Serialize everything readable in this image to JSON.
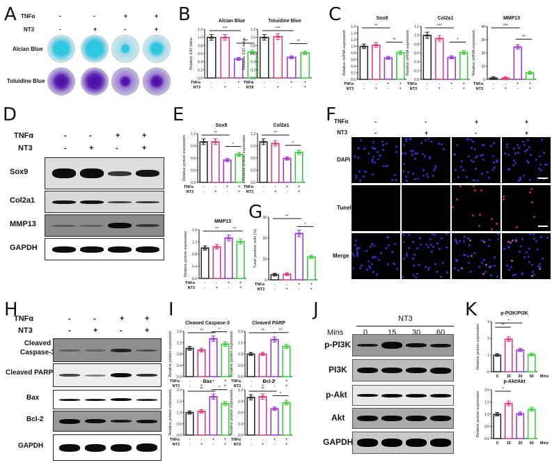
{
  "panels": {
    "A": {
      "label": "A",
      "rows": [
        "TNFα",
        "NT3"
      ],
      "treatments": {
        "TNFa": [
          "-",
          "-",
          "+",
          "+"
        ],
        "NT3": [
          "-",
          "+",
          "-",
          "+"
        ]
      },
      "stains": [
        "Alcian Blue",
        "Toluidine Blue"
      ]
    },
    "B": {
      "label": "B"
    },
    "C": {
      "label": "C"
    },
    "D": {
      "label": "D",
      "rows": [
        "TNFα",
        "NT3"
      ],
      "treatments": {
        "TNFa": [
          "-",
          "-",
          "+",
          "+"
        ],
        "NT3": [
          "-",
          "+",
          "-",
          "+"
        ]
      },
      "blots": [
        "Sox9",
        "Col2a1",
        "MMP13",
        "GAPDH"
      ]
    },
    "E": {
      "label": "E"
    },
    "F": {
      "label": "F",
      "rows": [
        "TNFα",
        "NT3"
      ],
      "treatments": {
        "TNFa": [
          "-",
          "-",
          "+",
          "+"
        ],
        "NT3": [
          "-",
          "+",
          "-",
          "+"
        ]
      },
      "channels": [
        "DAPI",
        "Tunel",
        "Merge"
      ]
    },
    "G": {
      "label": "G"
    },
    "H": {
      "label": "H",
      "rows": [
        "TNFα",
        "NT3"
      ],
      "treatments": {
        "TNFa": [
          "-",
          "-",
          "+",
          "+"
        ],
        "NT3": [
          "-",
          "+",
          "-",
          "+"
        ]
      },
      "blots": [
        "Cleaved Caspase-3",
        "Cleaved PARP",
        "Bax",
        "Bcl-2",
        "GAPDH"
      ]
    },
    "I": {
      "label": "I"
    },
    "J": {
      "label": "J",
      "group": "NT3",
      "time_label": "Mins",
      "times": [
        "0",
        "15",
        "30",
        "60"
      ],
      "blots": [
        "p-PI3K",
        "PI3K",
        "p-Akt",
        "Akt",
        "GAPDH"
      ]
    },
    "K": {
      "label": "K"
    }
  },
  "axis_common": {
    "tnfa_label": "TNFα",
    "nt3_label": "NT3",
    "mins_label": "Mins"
  },
  "colors": {
    "ctrl": "#222222",
    "nt3": "#e0307a",
    "tnfa": "#9b30d9",
    "tnfa_nt3": "#33cc33"
  },
  "chart_data": [
    {
      "panel": "B",
      "type": "bar",
      "title": "Alcian Blue",
      "ylabel": "Relative IOD Value",
      "categories": [
        "Ctrl",
        "NT3",
        "TNFα",
        "TNFα+NT3"
      ],
      "values": [
        1.0,
        1.0,
        0.47,
        0.64
      ],
      "ylim": [
        0,
        1.2
      ],
      "yticks": [
        "0.0",
        "0.2",
        "0.4",
        "0.6",
        "0.8",
        "1.0",
        "1.2"
      ],
      "sig": [
        {
          "from": 0,
          "to": 2,
          "text": "***"
        },
        {
          "from": 2,
          "to": 3,
          "text": "***"
        }
      ]
    },
    {
      "panel": "B",
      "type": "bar",
      "title": "Toluidine Blue",
      "ylabel": "Relative IOD Value",
      "categories": [
        "Ctrl",
        "NT3",
        "TNFα",
        "TNFα+NT3"
      ],
      "values": [
        1.0,
        1.02,
        0.51,
        0.62
      ],
      "ylim": [
        0,
        1.2
      ],
      "yticks": [
        "0.0",
        "0.2",
        "0.4",
        "0.6",
        "0.8",
        "1.0",
        "1.2"
      ],
      "sig": [
        {
          "from": 0,
          "to": 2,
          "text": "***"
        },
        {
          "from": 2,
          "to": 3,
          "text": "**"
        }
      ]
    },
    {
      "panel": "C",
      "type": "bar",
      "title": "Sox9",
      "ylabel": "Relative mRNA expression",
      "categories": [
        "Ctrl",
        "NT3",
        "TNFα",
        "TNFα+NT3"
      ],
      "values": [
        1.0,
        1.04,
        0.65,
        0.81
      ],
      "ylim": [
        0,
        1.6
      ],
      "yticks": [
        "0.0",
        "0.2",
        "0.4",
        "0.6",
        "0.8",
        "1.0",
        "1.2",
        "1.4",
        "1.6"
      ],
      "sig": [
        {
          "from": 0,
          "to": 2,
          "text": "**"
        },
        {
          "from": 2,
          "to": 3,
          "text": "**"
        }
      ]
    },
    {
      "panel": "C",
      "type": "bar",
      "title": "Col2a1",
      "ylabel": "Relative mRNA expression",
      "categories": [
        "Ctrl",
        "NT3",
        "TNFα",
        "TNFα+NT3"
      ],
      "values": [
        1.0,
        0.93,
        0.5,
        0.61
      ],
      "ylim": [
        0,
        1.2
      ],
      "yticks": [
        "0.0",
        "0.2",
        "0.4",
        "0.6",
        "0.8",
        "1.0",
        "1.2"
      ],
      "sig": [
        {
          "from": 0,
          "to": 2,
          "text": "***"
        },
        {
          "from": 2,
          "to": 3,
          "text": "*"
        }
      ]
    },
    {
      "panel": "C",
      "type": "bar",
      "title": "MMP13",
      "ylabel": "Relative mRNA expression",
      "categories": [
        "Ctrl",
        "NT3",
        "TNFα",
        "TNFα+NT3"
      ],
      "values": [
        1.0,
        1.0,
        24.5,
        5.0
      ],
      "ylim": [
        0,
        40
      ],
      "yticks": [
        "0",
        "10",
        "20",
        "30",
        "40"
      ],
      "sig": [
        {
          "from": 0,
          "to": 2,
          "text": "***"
        },
        {
          "from": 2,
          "to": 3,
          "text": "**"
        }
      ]
    },
    {
      "panel": "E",
      "type": "bar",
      "title": "Sox9",
      "ylabel": "Relative protein expression",
      "categories": [
        "Ctrl",
        "NT3",
        "TNFα",
        "TNFα+NT3"
      ],
      "values": [
        1.0,
        1.0,
        0.55,
        0.69
      ],
      "ylim": [
        0,
        1.2
      ],
      "yticks": [
        "0.0",
        "0.3",
        "0.6",
        "0.9",
        "1.2"
      ],
      "sig": [
        {
          "from": 0,
          "to": 2,
          "text": "**"
        },
        {
          "from": 2,
          "to": 3,
          "text": "*"
        }
      ]
    },
    {
      "panel": "E",
      "type": "bar",
      "title": "Col2a1",
      "ylabel": "Relative protein expression",
      "categories": [
        "Ctrl",
        "NT3",
        "TNFα",
        "TNFα+NT3"
      ],
      "values": [
        1.0,
        0.96,
        0.59,
        0.74
      ],
      "ylim": [
        0,
        1.2
      ],
      "yticks": [
        "0.0",
        "0.3",
        "0.6",
        "0.9",
        "1.2"
      ],
      "sig": [
        {
          "from": 0,
          "to": 2,
          "text": "**"
        },
        {
          "from": 2,
          "to": 3,
          "text": "*"
        }
      ]
    },
    {
      "panel": "E",
      "type": "bar",
      "title": "MMP13",
      "ylabel": "Relative protein expression",
      "categories": [
        "Ctrl",
        "NT3",
        "TNFα",
        "TNFα+NT3"
      ],
      "values": [
        1.0,
        1.04,
        1.33,
        1.21
      ],
      "ylim": [
        0,
        1.6
      ],
      "yticks": [
        "0.0",
        "0.4",
        "0.8",
        "1.2",
        "1.6"
      ],
      "sig": [
        {
          "from": 0,
          "to": 2,
          "text": "**"
        },
        {
          "from": 2,
          "to": 3,
          "text": "**"
        }
      ]
    },
    {
      "panel": "G",
      "type": "bar",
      "title": "",
      "ylabel": "Tunel positive cells (%)",
      "categories": [
        "Ctrl",
        "NT3",
        "TNFα",
        "TNFα+NT3"
      ],
      "values": [
        2.5,
        2.7,
        22.2,
        11.0
      ],
      "ylim": [
        0,
        30
      ],
      "yticks": [
        "0",
        "10",
        "20",
        "30"
      ],
      "sig": [
        {
          "from": 0,
          "to": 2,
          "text": "**"
        },
        {
          "from": 2,
          "to": 3,
          "text": "*"
        }
      ]
    },
    {
      "panel": "I",
      "type": "bar",
      "title": "Cleaved Caspase-3",
      "ylabel": "Relative protein expression",
      "categories": [
        "Ctrl",
        "NT3",
        "TNFα",
        "TNFα+NT3"
      ],
      "values": [
        1.0,
        0.94,
        1.34,
        1.15
      ],
      "ylim": [
        0,
        1.6
      ],
      "yticks": [
        "0.0",
        "0.4",
        "0.8",
        "1.2",
        "1.6"
      ],
      "sig": [
        {
          "from": 0,
          "to": 2,
          "text": "**"
        },
        {
          "from": 2,
          "to": 3,
          "text": "*"
        }
      ]
    },
    {
      "panel": "I",
      "type": "bar",
      "title": "Cleaved PARP",
      "ylabel": "Relative protein expression",
      "categories": [
        "Ctrl",
        "NT3",
        "TNFα",
        "TNFα+NT3"
      ],
      "values": [
        1.0,
        1.0,
        1.64,
        1.34
      ],
      "ylim": [
        0,
        2.0
      ],
      "yticks": [
        "0.0",
        "0.5",
        "1.0",
        "1.5",
        "2.0"
      ],
      "sig": [
        {
          "from": 0,
          "to": 2,
          "text": "**"
        },
        {
          "from": 2,
          "to": 3,
          "text": "**"
        }
      ]
    },
    {
      "panel": "I",
      "type": "bar",
      "title": "Bax",
      "ylabel": "Relative protein expression",
      "categories": [
        "Ctrl",
        "NT3",
        "TNFα",
        "TNFα+NT3"
      ],
      "values": [
        1.0,
        1.05,
        1.7,
        1.4
      ],
      "ylim": [
        0,
        2.0
      ],
      "yticks": [
        "0.0",
        "0.5",
        "1.0",
        "1.5",
        "2.0"
      ],
      "sig": [
        {
          "from": 0,
          "to": 2,
          "text": "**"
        },
        {
          "from": 2,
          "to": 3,
          "text": "*"
        }
      ]
    },
    {
      "panel": "I",
      "type": "bar",
      "title": "Bcl-2",
      "ylabel": "Relative protein expression",
      "categories": [
        "Ctrl",
        "NT3",
        "TNFα",
        "TNFα+NT3"
      ],
      "values": [
        1.0,
        1.02,
        0.7,
        0.86
      ],
      "ylim": [
        0,
        1.2
      ],
      "yticks": [
        "0.0",
        "0.3",
        "0.6",
        "0.9",
        "1.2"
      ],
      "sig": [
        {
          "from": 0,
          "to": 2,
          "text": "**"
        },
        {
          "from": 2,
          "to": 3,
          "text": "*"
        }
      ]
    },
    {
      "panel": "K",
      "type": "bar",
      "title": "p-PI3K/PI3K",
      "ylabel": "Relative protein expression",
      "xlabel": "Mins",
      "categories": [
        "0",
        "15",
        "30",
        "60"
      ],
      "values": [
        1.0,
        1.95,
        1.3,
        1.03
      ],
      "ylim": [
        0,
        3
      ],
      "yticks": [
        "0",
        "1",
        "2",
        "3"
      ],
      "sig": [
        {
          "from": 0,
          "to": 1,
          "text": "**"
        },
        {
          "from": 0,
          "to": 2,
          "text": "*"
        }
      ]
    },
    {
      "panel": "K",
      "type": "bar",
      "title": "p-Akt/Akt",
      "ylabel": "Relative protein expression",
      "xlabel": "Mins",
      "categories": [
        "0",
        "15",
        "30",
        "60"
      ],
      "values": [
        1.0,
        1.44,
        1.02,
        1.2
      ],
      "ylim": [
        0,
        2.0
      ],
      "yticks": [
        "0.0",
        "0.5",
        "1.0",
        "1.5",
        "2.0"
      ],
      "sig": [
        {
          "from": 0,
          "to": 1,
          "text": "*"
        }
      ]
    }
  ]
}
